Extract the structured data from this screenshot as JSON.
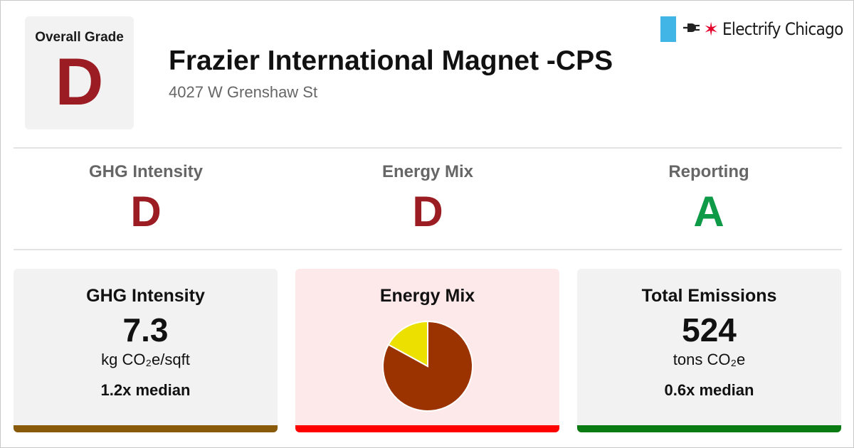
{
  "overall": {
    "label": "Overall Grade",
    "grade": "D",
    "grade_color": "#9b1c22"
  },
  "building": {
    "name": "Frazier International Magnet -CPS",
    "address": "4027 W Grenshaw St"
  },
  "brand": {
    "name": "Electrify Chicago",
    "flag_color": "#41b6e6",
    "star_color": "#e4002b",
    "icons": [
      "flag-bar-icon",
      "plug-icon",
      "star-icon"
    ]
  },
  "grades": [
    {
      "label": "GHG Intensity",
      "grade": "D",
      "color": "#9b1c22"
    },
    {
      "label": "Energy Mix",
      "grade": "D",
      "color": "#9b1c22"
    },
    {
      "label": "Reporting",
      "grade": "A",
      "color": "#0f9a48"
    }
  ],
  "cards": {
    "ghg": {
      "title": "GHG Intensity",
      "value": "7.3",
      "unit": "kg CO₂e/sqft",
      "median": "1.2x median",
      "bar_color": "#8a5a0b"
    },
    "mix": {
      "title": "Energy Mix",
      "bar_color": "#ff0000",
      "background": "#fde8ea"
    },
    "emissions": {
      "title": "Total Emissions",
      "value": "524",
      "unit": "tons CO₂e",
      "median": "0.6x median",
      "bar_color": "#0a7a12"
    }
  },
  "chart_data": {
    "type": "pie",
    "slices": [
      {
        "share": 0.83,
        "color": "#9b3300"
      },
      {
        "share": 0.17,
        "color": "#ebe000"
      }
    ]
  }
}
